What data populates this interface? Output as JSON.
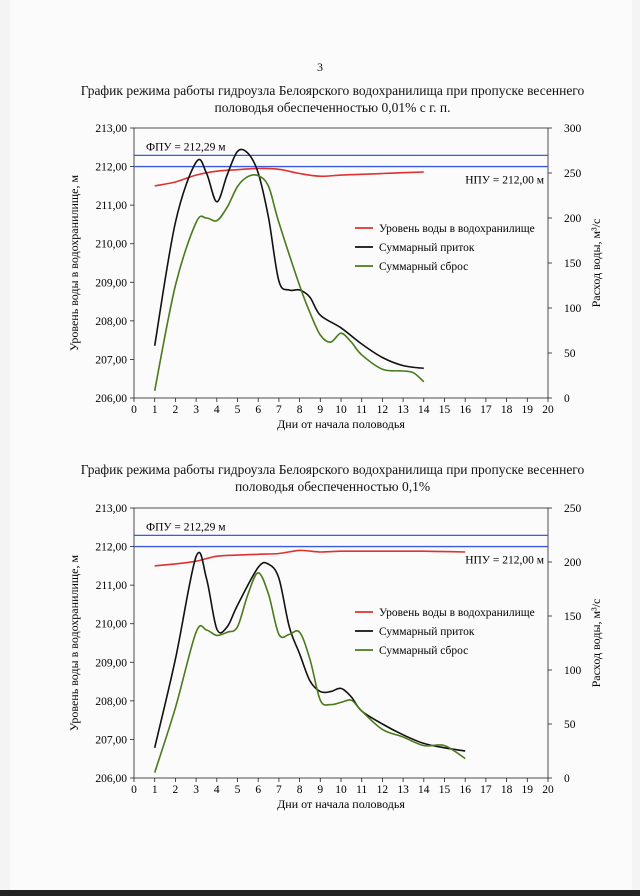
{
  "page": {
    "number": "3"
  },
  "chart_data": [
    {
      "type": "line",
      "title": "График режима работы гидроузла Белоярского водохранилища при пропуске весеннего половодья обеспеченностью 0,01% с г. п.",
      "xlabel": "Дни от начала половодья",
      "ylabel": "Уровень воды в водохранилище, м",
      "y2label": "Расход воды, м³/с",
      "xlim": [
        0,
        20
      ],
      "ylim": [
        206,
        213
      ],
      "y2lim": [
        0,
        300
      ],
      "x_ticks": [
        "0",
        "1",
        "2",
        "3",
        "4",
        "5",
        "6",
        "7",
        "8",
        "9",
        "10",
        "11",
        "12",
        "13",
        "14",
        "15",
        "16",
        "17",
        "18",
        "19",
        "20"
      ],
      "y_ticks": [
        "206,00",
        "207,00",
        "208,00",
        "209,00",
        "210,00",
        "211,00",
        "212,00",
        "213,00"
      ],
      "y_tick_values": [
        206,
        207,
        208,
        209,
        210,
        211,
        212,
        213
      ],
      "y2_ticks": [
        "0",
        "50",
        "100",
        "150",
        "200",
        "250",
        "300"
      ],
      "y2_tick_values": [
        0,
        50,
        100,
        150,
        200,
        250,
        300
      ],
      "reference_lines": [
        {
          "label": "ФПУ = 212,29 м",
          "y": 212.29,
          "color": "#3b5bdb",
          "label_pos": "left"
        },
        {
          "label": "НПУ = 212,00 м",
          "y": 212.0,
          "color": "#3b5bdb",
          "label_pos": "right"
        }
      ],
      "legend": [
        "Уровень воды в водохранилище",
        "Суммарный приток",
        "Суммарный сброс"
      ],
      "legend_position": "right",
      "series": [
        {
          "name": "Уровень воды в водохранилище",
          "axis": "left",
          "color": "#e03131",
          "x": [
            1,
            2,
            3,
            4,
            5,
            6,
            7,
            8,
            9,
            10,
            11,
            12,
            13,
            14
          ],
          "values": [
            211.5,
            211.6,
            211.78,
            211.88,
            211.92,
            211.95,
            211.93,
            211.82,
            211.75,
            211.78,
            211.8,
            211.82,
            211.84,
            211.86
          ]
        },
        {
          "name": "Суммарный приток",
          "axis": "right",
          "color": "#111111",
          "x": [
            1,
            2,
            3,
            3.5,
            4,
            4.5,
            5,
            5.5,
            6,
            6.5,
            7,
            7.5,
            8,
            8.5,
            9,
            10,
            11,
            12,
            13,
            14
          ],
          "values": [
            58,
            195,
            262,
            250,
            218,
            248,
            274,
            272,
            250,
            200,
            130,
            120,
            120,
            112,
            92,
            78,
            60,
            45,
            36,
            33
          ]
        },
        {
          "name": "Суммарный сброс",
          "axis": "right",
          "color": "#4a7a1a",
          "x": [
            1,
            2,
            3,
            3.5,
            4,
            4.5,
            5,
            5.5,
            6,
            6.5,
            7,
            8,
            8.5,
            9,
            9.5,
            10,
            10.5,
            11,
            12,
            13,
            13.5,
            14
          ],
          "values": [
            8,
            125,
            195,
            200,
            197,
            212,
            235,
            246,
            247,
            235,
            195,
            125,
            95,
            70,
            62,
            72,
            62,
            48,
            32,
            30,
            28,
            18
          ]
        }
      ]
    },
    {
      "type": "line",
      "title": "График режима работы гидроузла Белоярского водохранилища при пропуске весеннего половодья обеспеченностью 0,1%",
      "xlabel": "Дни от начала половодья",
      "ylabel": "Уровень воды в водохранилище, м",
      "y2label": "Расход воды, м³/с",
      "xlim": [
        0,
        20
      ],
      "ylim": [
        206,
        213
      ],
      "y2lim": [
        0,
        250
      ],
      "x_ticks": [
        "0",
        "1",
        "2",
        "3",
        "4",
        "5",
        "6",
        "7",
        "8",
        "9",
        "10",
        "11",
        "12",
        "13",
        "14",
        "15",
        "16",
        "17",
        "18",
        "19",
        "20"
      ],
      "y_ticks": [
        "206,00",
        "207,00",
        "208,00",
        "209,00",
        "210,00",
        "211,00",
        "212,00",
        "213,00"
      ],
      "y_tick_values": [
        206,
        207,
        208,
        209,
        210,
        211,
        212,
        213
      ],
      "y2_ticks": [
        "0",
        "50",
        "100",
        "150",
        "200",
        "250"
      ],
      "y2_tick_values": [
        0,
        50,
        100,
        150,
        200,
        250
      ],
      "reference_lines": [
        {
          "label": "ФПУ = 212,29 м",
          "y": 212.29,
          "color": "#3b5bdb",
          "label_pos": "left"
        },
        {
          "label": "НПУ = 212,00 м",
          "y": 212.0,
          "color": "#3b5bdb",
          "label_pos": "right"
        }
      ],
      "legend": [
        "Уровень воды в водохранилище",
        "Суммарный приток",
        "Суммарный сброс"
      ],
      "legend_position": "right",
      "series": [
        {
          "name": "Уровень воды в водохранилище",
          "axis": "left",
          "color": "#e03131",
          "x": [
            1,
            2,
            3,
            4,
            5,
            6,
            7,
            8,
            9,
            10,
            11,
            12,
            13,
            14,
            15,
            16
          ],
          "values": [
            211.5,
            211.55,
            211.62,
            211.75,
            211.78,
            211.8,
            211.82,
            211.9,
            211.86,
            211.88,
            211.88,
            211.88,
            211.88,
            211.88,
            211.87,
            211.86
          ]
        },
        {
          "name": "Суммарный приток",
          "axis": "right",
          "color": "#111111",
          "x": [
            1,
            2,
            3,
            3.5,
            4,
            4.5,
            5,
            6,
            6.5,
            7,
            7.5,
            8,
            8.5,
            9,
            9.5,
            10,
            10.5,
            11,
            12,
            13,
            14,
            15,
            16
          ],
          "values": [
            28,
            110,
            205,
            185,
            138,
            140,
            160,
            195,
            198,
            185,
            140,
            115,
            90,
            80,
            80,
            83,
            75,
            62,
            50,
            40,
            32,
            28,
            25
          ]
        },
        {
          "name": "Суммарный сброс",
          "axis": "right",
          "color": "#4a7a1a",
          "x": [
            1,
            2,
            3,
            3.5,
            4,
            4.5,
            5,
            5.5,
            6,
            6.5,
            7,
            7.5,
            8,
            8.5,
            9,
            9.5,
            10,
            10.5,
            11,
            12,
            13,
            14,
            15,
            16
          ],
          "values": [
            5,
            65,
            135,
            137,
            132,
            135,
            140,
            170,
            190,
            170,
            133,
            133,
            135,
            110,
            72,
            68,
            70,
            72,
            62,
            45,
            38,
            30,
            30,
            18
          ]
        }
      ]
    }
  ]
}
